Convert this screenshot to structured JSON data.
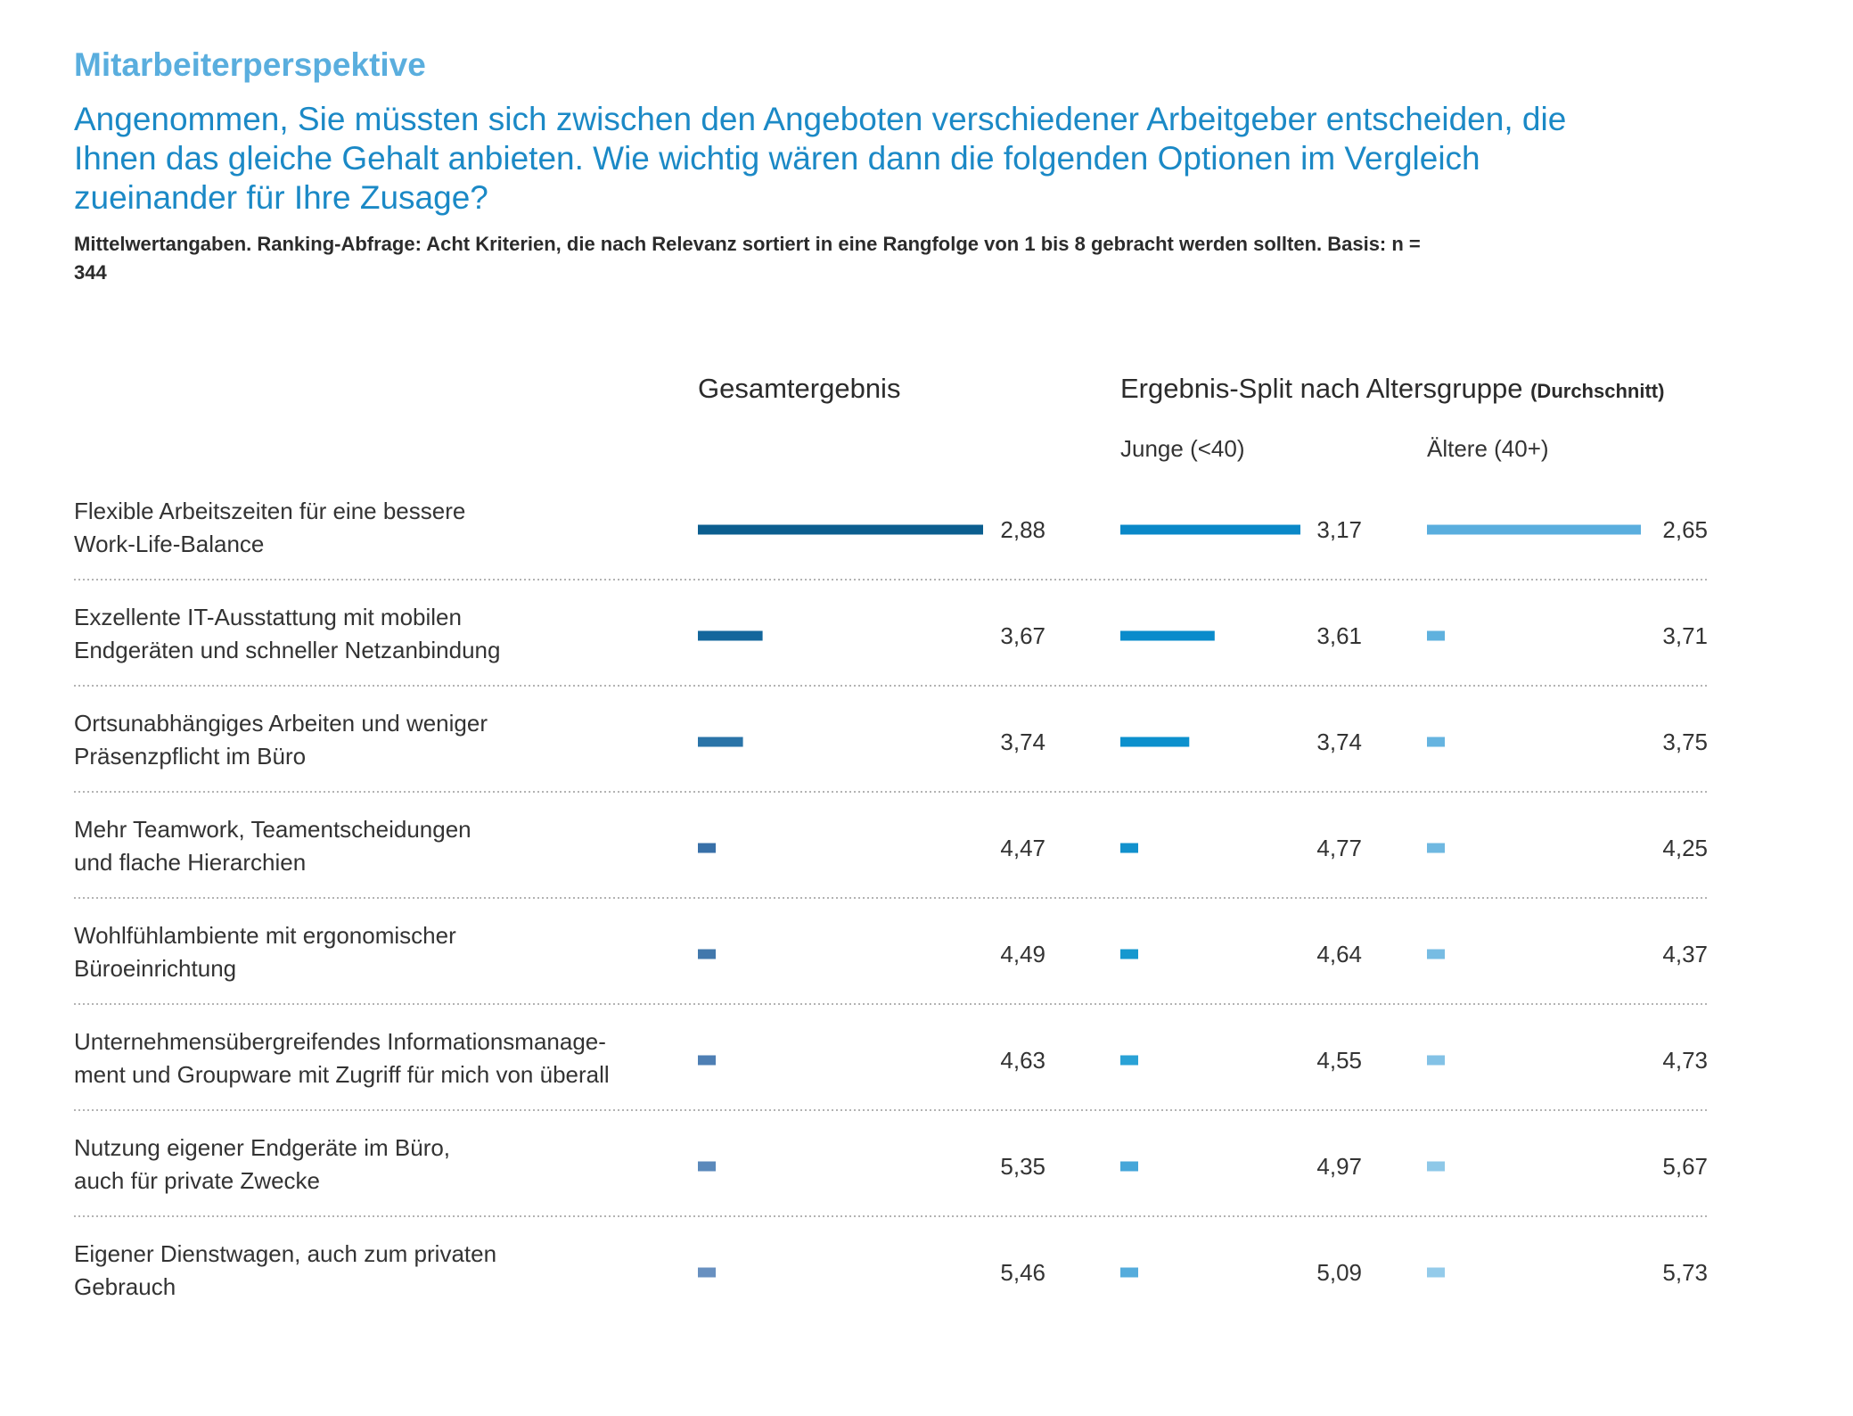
{
  "header": {
    "section_label": "Mitarbeiterperspektive",
    "question": "Angenommen, Sie müssten sich zwischen den Angeboten verschiedener Arbeitgeber entscheiden, die Ihnen das gleiche Gehalt anbieten. Wie wichtig wären dann die folgenden Optionen im Vergleich zueinander für Ihre Zusage?",
    "note": "Mittelwertangaben. Ranking-Abfrage: Acht Kriterien, die nach Relevanz sortiert in eine Rangfolge von 1 bis 8 gebracht werden sollten. Basis: n = 344"
  },
  "columns": {
    "overall_title": "Gesamtergebnis",
    "split_title": "Ergebnis-Split nach Altersgruppe",
    "split_suffix": "(Durchschnitt)",
    "young_label": "Junge (<40)",
    "old_label": "Ältere (40+)"
  },
  "chart_data": {
    "type": "bar",
    "orientation": "horizontal",
    "value_meaning": "average rank from 1 to 8; shorter bar means higher rank value",
    "categories": [
      [
        "Flexible Arbeitszeiten für eine bessere",
        "Work-Life-Balance"
      ],
      [
        "Exzellente IT-Ausstattung mit mobilen",
        "Endgeräten und schneller Netzanbindung"
      ],
      [
        "Ortsunabhängiges Arbeiten und weniger",
        "Präsenzpflicht im Büro"
      ],
      [
        "Mehr Teamwork, Teamentscheidungen",
        "und flache Hierarchien"
      ],
      [
        "Wohlfühlambiente mit ergonomischer",
        "Büroeinrichtung"
      ],
      [
        "Unternehmensübergreifendes Informationsmanage-",
        "ment und Groupware mit Zugriff für mich von überall"
      ],
      [
        "Nutzung eigener Endgeräte im Büro,",
        "auch für private Zwecke"
      ],
      [
        "Eigener Dienstwagen, auch zum privaten",
        "Gebrauch"
      ]
    ],
    "series": [
      {
        "name": "Gesamtergebnis",
        "values": [
          2.88,
          3.67,
          3.74,
          4.47,
          4.49,
          4.63,
          5.35,
          5.46
        ],
        "labels": [
          "2,88",
          "3,67",
          "3,74",
          "4,47",
          "4,49",
          "4,63",
          "5,35",
          "5,46"
        ],
        "colors": [
          "#0b5e8f",
          "#14679c",
          "#2a74a8",
          "#3870a8",
          "#4278ac",
          "#4e7fb4",
          "#5a89bb",
          "#6890c0"
        ]
      },
      {
        "name": "Junge (<40)",
        "values": [
          3.17,
          3.61,
          3.74,
          4.77,
          4.64,
          4.55,
          4.97,
          5.09
        ],
        "labels": [
          "3,17",
          "3,61",
          "3,74",
          "4,77",
          "4,64",
          "4,55",
          "4,97",
          "5,09"
        ],
        "colors": [
          "#0a88c8",
          "#0a8bcb",
          "#0c90cd",
          "#1291cd",
          "#1598cf",
          "#2aa2d6",
          "#45a6d9",
          "#55acdc"
        ]
      },
      {
        "name": "Ältere (40+)",
        "values": [
          2.65,
          3.71,
          3.75,
          4.25,
          4.37,
          4.73,
          5.67,
          5.73
        ],
        "labels": [
          "2,65",
          "3,71",
          "3,75",
          "4,25",
          "4,37",
          "4,73",
          "5,67",
          "5,73"
        ],
        "colors": [
          "#5aaede",
          "#5fb1de",
          "#66b4e0",
          "#6fb8e1",
          "#77bce3",
          "#83c2e6",
          "#8ec8e8",
          "#94cbea"
        ]
      }
    ],
    "grid": false,
    "legend": "none"
  }
}
